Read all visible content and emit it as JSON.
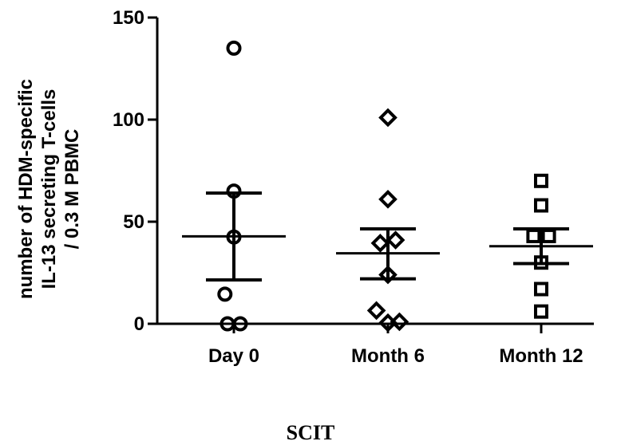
{
  "chart_data": {
    "type": "scatter",
    "ylabel_lines": [
      "number of HDM-specific",
      "IL-13 secreting T-cells",
      "/ 0.3 M PBMC"
    ],
    "xlabel": "SCIT",
    "ylim": [
      0,
      150
    ],
    "yticks": [
      0,
      50,
      100,
      150
    ],
    "categories": [
      "Day 0",
      "Month 6",
      "Month 12"
    ],
    "series": [
      {
        "category": "Day 0",
        "marker": "circle",
        "points": [
          [
            0,
            135
          ],
          [
            0,
            65
          ],
          [
            0,
            42.5
          ],
          [
            -0.07,
            14.5
          ],
          [
            -0.05,
            0
          ],
          [
            0.05,
            0
          ]
        ],
        "mean": 42.8,
        "err_low": 21.5,
        "err_high": 64
      },
      {
        "category": "Month 6",
        "marker": "diamond",
        "points": [
          [
            0,
            101
          ],
          [
            0,
            61
          ],
          [
            -0.06,
            39.5
          ],
          [
            0.06,
            41
          ],
          [
            0,
            24
          ],
          [
            -0.09,
            6.5
          ],
          [
            0,
            0.5
          ],
          [
            0.09,
            1
          ]
        ],
        "mean": 34.5,
        "err_low": 22,
        "err_high": 46.5
      },
      {
        "category": "Month 12",
        "marker": "square",
        "points": [
          [
            0,
            70
          ],
          [
            0,
            58
          ],
          [
            -0.06,
            43
          ],
          [
            0.06,
            43
          ],
          [
            0,
            30
          ],
          [
            0,
            17
          ],
          [
            0,
            6
          ]
        ],
        "mean": 38,
        "err_low": 29.5,
        "err_high": 46.5
      }
    ],
    "grid": false
  }
}
